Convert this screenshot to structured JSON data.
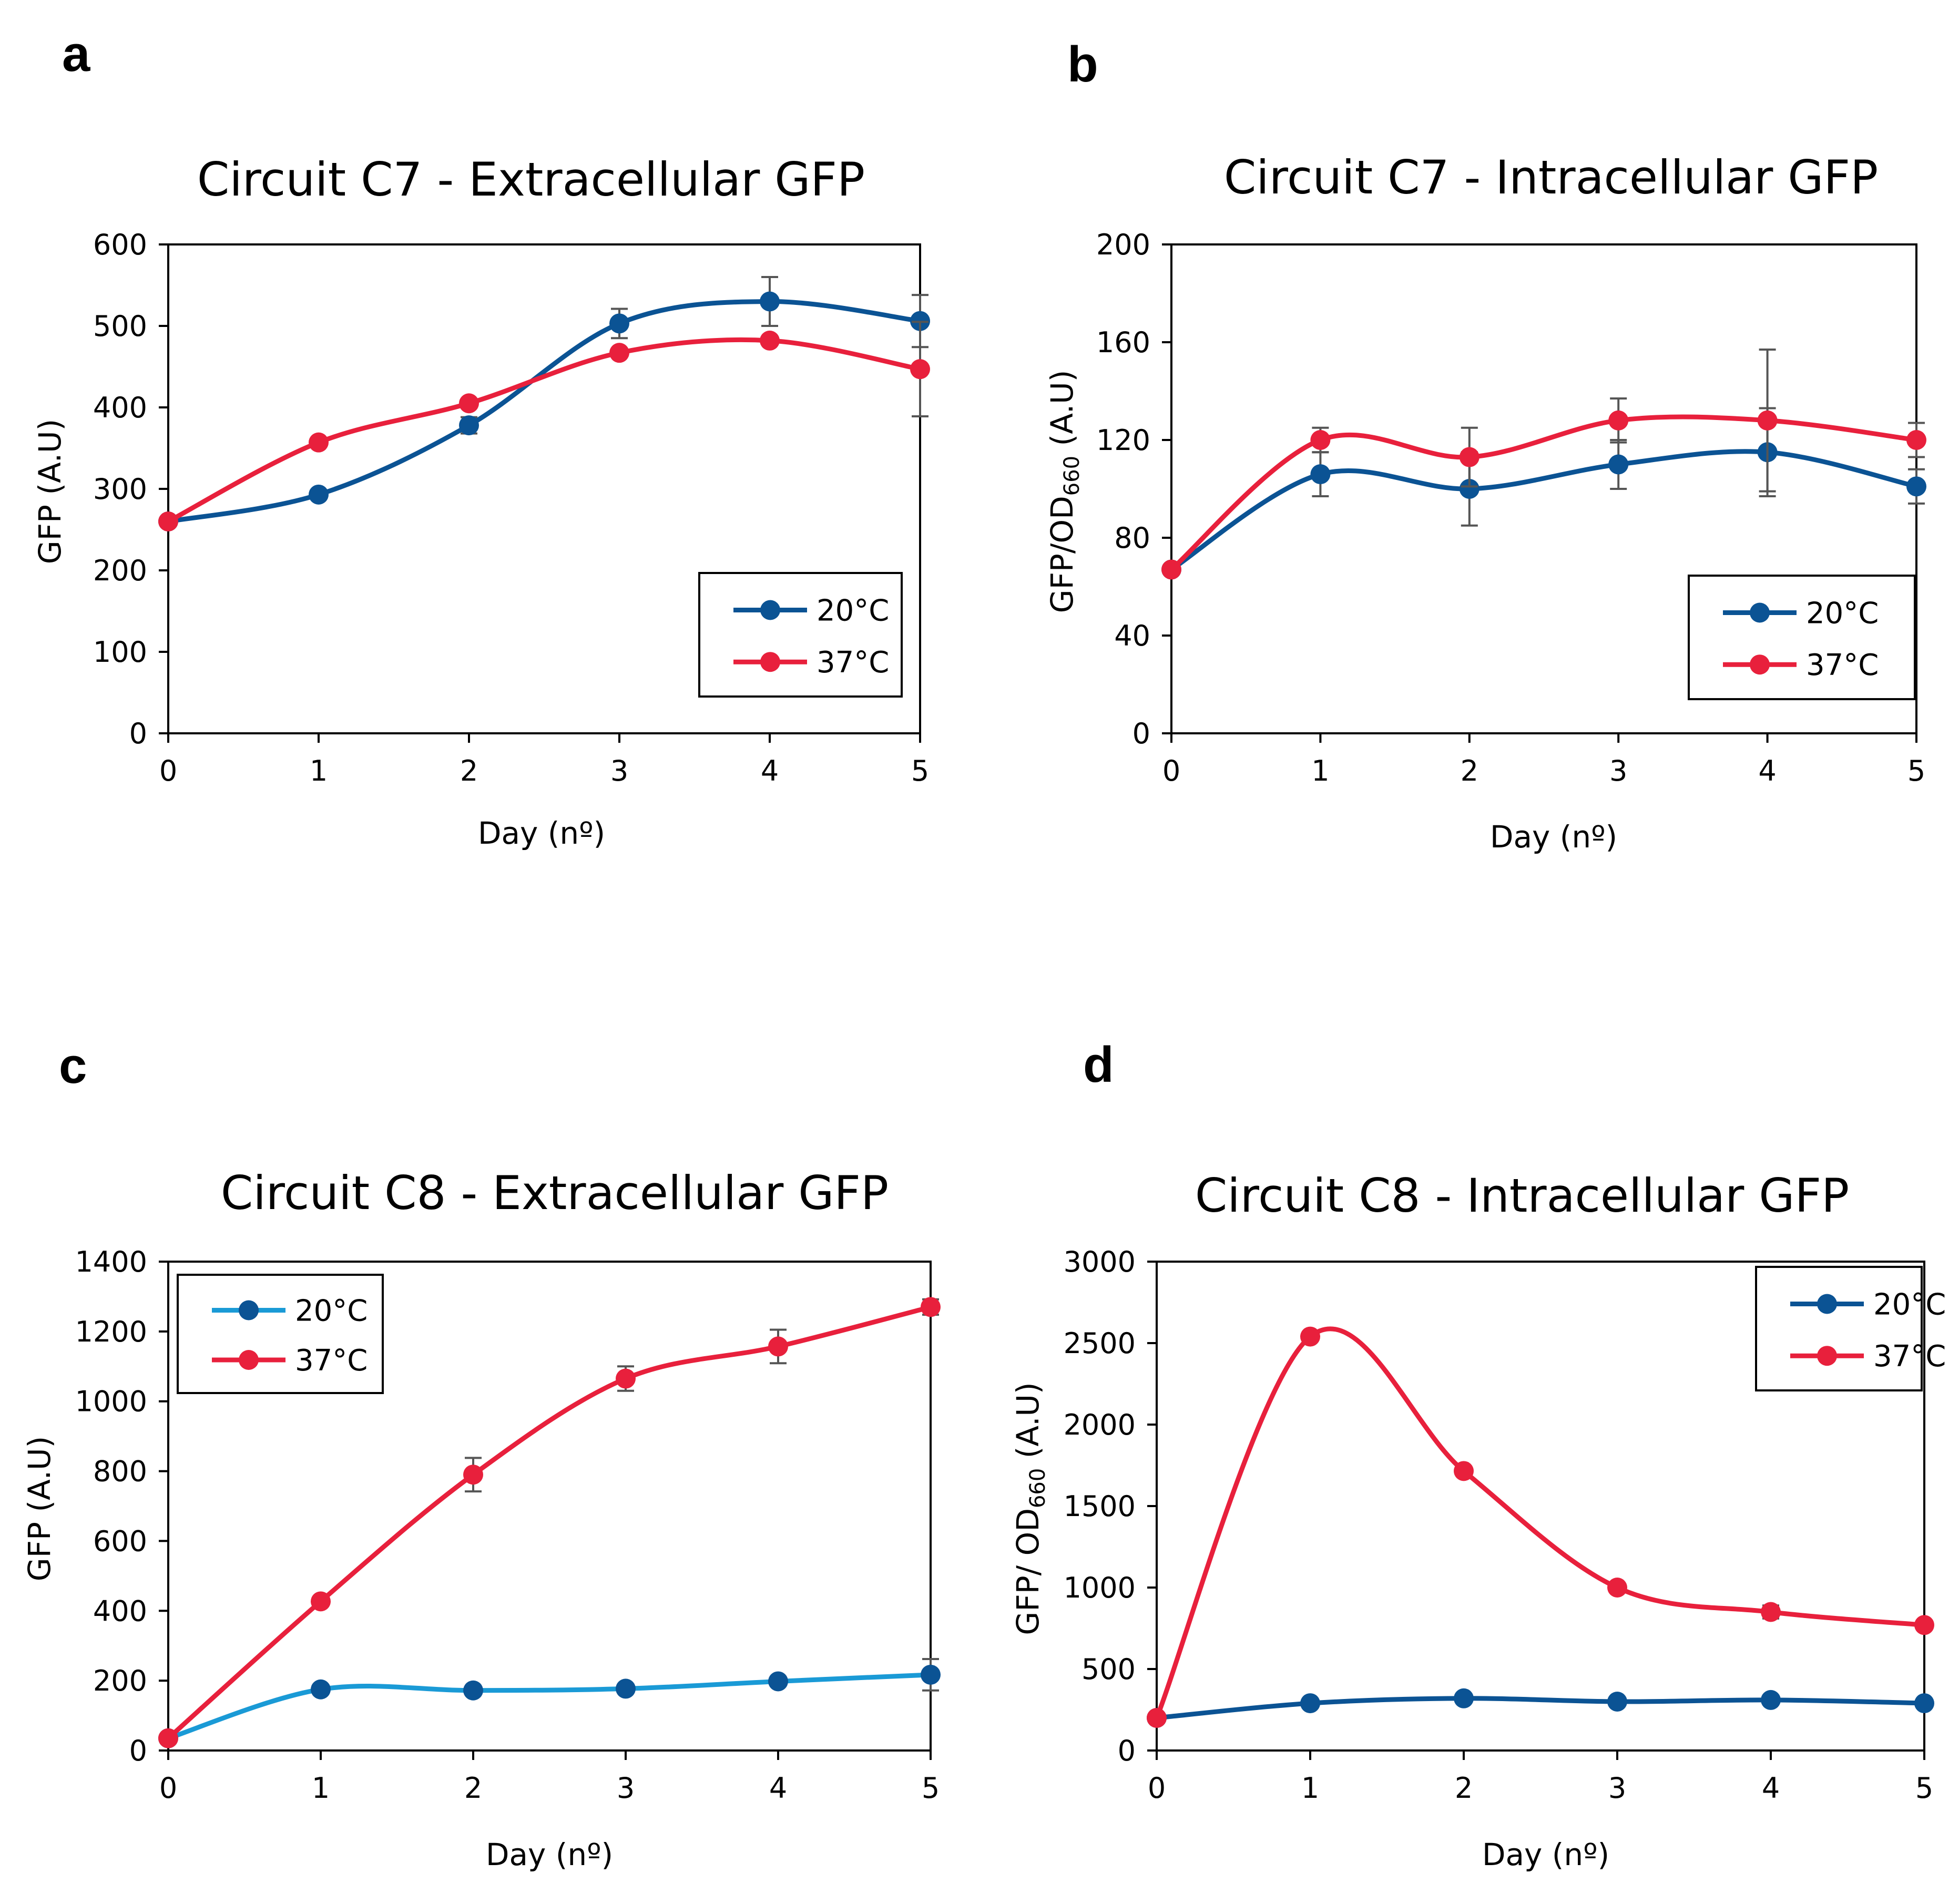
{
  "colors": {
    "blue": "#0B5394",
    "light_blue": "#1A9AD6",
    "red": "#E8203C",
    "error_bar": "#555555",
    "axis": "#000000"
  },
  "chart_data": [
    {
      "panel": "a",
      "type": "line",
      "title": "Circuit C7 - Extracellular GFP",
      "xlabel": "Day (nº)",
      "ylabel": "GFP (A.U)",
      "ylabel_sub": "",
      "ylabel_post": "",
      "xlim": [
        0,
        5
      ],
      "ylim": [
        0,
        600
      ],
      "yticks": [
        0,
        100,
        200,
        300,
        400,
        500,
        600
      ],
      "xticks": [
        0,
        1,
        2,
        3,
        4,
        5
      ],
      "legend_position": "bottom-right",
      "series": [
        {
          "name": "20°C",
          "color": "#0B5394",
          "x": [
            0,
            1,
            2,
            3,
            4,
            5
          ],
          "values": [
            260,
            293,
            378,
            503,
            530,
            506
          ],
          "errors": [
            0,
            0,
            10,
            18,
            30,
            32
          ]
        },
        {
          "name": "37°C",
          "color": "#E8203C",
          "x": [
            0,
            1,
            2,
            3,
            4,
            5
          ],
          "values": [
            260,
            357,
            405,
            467,
            482,
            447
          ],
          "errors": [
            0,
            0,
            0,
            0,
            0,
            58
          ]
        }
      ]
    },
    {
      "panel": "b",
      "type": "line",
      "title": "Circuit C7 - Intracellular GFP",
      "xlabel": "Day (nº)",
      "ylabel": "GFP/OD",
      "ylabel_sub": "660",
      "ylabel_post": " (A.U)",
      "xlim": [
        0,
        5
      ],
      "ylim": [
        0,
        200
      ],
      "yticks": [
        0,
        40,
        80,
        120,
        160,
        200
      ],
      "xticks": [
        0,
        1,
        2,
        3,
        4,
        5
      ],
      "legend_position": "bottom-right",
      "series": [
        {
          "name": "20°C",
          "color": "#0B5394",
          "x": [
            0,
            1,
            2,
            3,
            4,
            5
          ],
          "values": [
            67,
            106,
            100,
            110,
            115,
            101
          ],
          "errors": [
            0,
            9,
            15,
            10,
            18,
            7
          ]
        },
        {
          "name": "37°C",
          "color": "#E8203C",
          "x": [
            0,
            1,
            2,
            3,
            4,
            5
          ],
          "values": [
            67,
            120,
            113,
            128,
            128,
            120
          ],
          "errors": [
            0,
            5,
            12,
            9,
            29,
            7
          ]
        }
      ]
    },
    {
      "panel": "c",
      "type": "line",
      "title": "Circuit C8 - Extracellular GFP",
      "xlabel": "Day (nº)",
      "ylabel": "GFP (A.U)",
      "ylabel_sub": "",
      "ylabel_post": "",
      "xlim": [
        0,
        5
      ],
      "ylim": [
        0,
        1400
      ],
      "yticks": [
        0,
        200,
        400,
        600,
        800,
        1000,
        1200,
        1400
      ],
      "xticks": [
        0,
        1,
        2,
        3,
        4,
        5
      ],
      "legend_position": "top-left",
      "series": [
        {
          "name": "20°C",
          "color": "#1A9AD6",
          "marker_color": "#0B5394",
          "x": [
            0,
            1,
            2,
            3,
            4,
            5
          ],
          "values": [
            35,
            175,
            172,
            177,
            198,
            217
          ],
          "errors": [
            0,
            0,
            0,
            0,
            0,
            45
          ]
        },
        {
          "name": "37°C",
          "color": "#E8203C",
          "x": [
            0,
            1,
            2,
            3,
            4,
            5
          ],
          "values": [
            35,
            427,
            790,
            1065,
            1157,
            1270
          ],
          "errors": [
            0,
            0,
            48,
            35,
            48,
            22
          ]
        }
      ]
    },
    {
      "panel": "d",
      "type": "line",
      "title": "Circuit C8 - Intracellular GFP",
      "xlabel": "Day (nº)",
      "ylabel": "GFP/ OD",
      "ylabel_sub": "660",
      "ylabel_post": " (A.U)",
      "xlim": [
        0,
        5
      ],
      "ylim": [
        0,
        3000
      ],
      "yticks": [
        0,
        500,
        1000,
        1500,
        2000,
        2500,
        3000
      ],
      "xticks": [
        0,
        1,
        2,
        3,
        4,
        5
      ],
      "legend_position": "top-right",
      "series": [
        {
          "name": "20°C",
          "color": "#0B5394",
          "x": [
            0,
            1,
            2,
            3,
            4,
            5
          ],
          "values": [
            200,
            290,
            320,
            300,
            310,
            290
          ],
          "errors": [
            0,
            0,
            0,
            0,
            0,
            0
          ]
        },
        {
          "name": "37°C",
          "color": "#E8203C",
          "x": [
            0,
            1,
            2,
            3,
            4,
            5
          ],
          "values": [
            200,
            2540,
            1715,
            1000,
            850,
            770
          ],
          "errors": [
            0,
            0,
            0,
            0,
            40,
            0
          ]
        }
      ]
    }
  ]
}
